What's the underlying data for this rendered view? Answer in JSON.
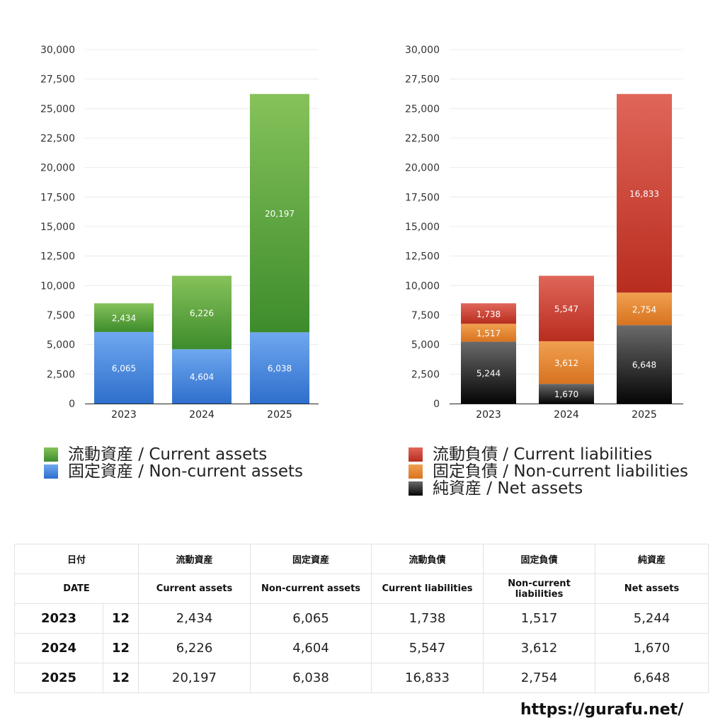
{
  "chart_data": [
    {
      "type": "bar",
      "stacked": true,
      "categories": [
        "2023",
        "2024",
        "2025"
      ],
      "ylim": [
        0,
        30000
      ],
      "yticks": [
        "0",
        "2,500",
        "5,000",
        "7,500",
        "10,000",
        "12,500",
        "15,000",
        "17,500",
        "20,000",
        "22,500",
        "25,000",
        "27,500",
        "30,000"
      ],
      "grid": true,
      "legend_position": "bottom",
      "series": [
        {
          "name": "固定資産 / Non-current assets",
          "values": [
            6065,
            4604,
            6038
          ],
          "labels": [
            "6,065",
            "4,604",
            "6,038"
          ],
          "color_top": "#6fa8f0",
          "color_bottom": "#2f6fcc"
        },
        {
          "name": "流動資産 / Current assets",
          "values": [
            2434,
            6226,
            20197
          ],
          "labels": [
            "2,434",
            "6,226",
            "20,197"
          ],
          "color_top": "#86c25a",
          "color_bottom": "#3d8c2c"
        }
      ]
    },
    {
      "type": "bar",
      "stacked": true,
      "categories": [
        "2023",
        "2024",
        "2025"
      ],
      "ylim": [
        0,
        30000
      ],
      "yticks": [
        "0",
        "2,500",
        "5,000",
        "7,500",
        "10,000",
        "12,500",
        "15,000",
        "17,500",
        "20,000",
        "22,500",
        "25,000",
        "27,500",
        "30,000"
      ],
      "grid": true,
      "legend_position": "bottom",
      "series": [
        {
          "name": "純資産 / Net assets",
          "values": [
            5244,
            1670,
            6648
          ],
          "labels": [
            "5,244",
            "1,670",
            "6,648"
          ],
          "color_top": "#6a6a6a",
          "color_bottom": "#050505"
        },
        {
          "name": "固定負債 / Non-current liabilities",
          "values": [
            1517,
            3612,
            2754
          ],
          "labels": [
            "1,517",
            "3,612",
            "2,754"
          ],
          "color_top": "#f0a050",
          "color_bottom": "#d8731f"
        },
        {
          "name": "流動負債 / Current liabilities",
          "values": [
            1738,
            5547,
            16833
          ],
          "labels": [
            "1,738",
            "5,547",
            "16,833"
          ],
          "color_top": "#e0665a",
          "color_bottom": "#b82d1e"
        }
      ]
    }
  ],
  "legends": {
    "left": [
      {
        "label": "流動資産 / Current assets",
        "color": "#4f9a35"
      },
      {
        "label": "固定資産 / Non-current assets",
        "color": "#3a7bd5"
      }
    ],
    "right": [
      {
        "label": "流動負債 / Current liabilities",
        "color": "#c83a2b"
      },
      {
        "label": "固定負債 / Non-current liabilities",
        "color": "#e58730"
      },
      {
        "label": "純資産 / Net assets",
        "color": "#1a1a1a"
      }
    ]
  },
  "table": {
    "headers_jp": [
      "日付",
      "流動資産",
      "固定資産",
      "流動負債",
      "固定負債",
      "純資産"
    ],
    "headers_en": [
      "DATE",
      "Current assets",
      "Non-current assets",
      "Current liabilities",
      "Non-current liabilities",
      "Net assets"
    ],
    "rows": [
      {
        "year": "2023",
        "month": "12",
        "values": [
          "2,434",
          "6,065",
          "1,738",
          "1,517",
          "5,244"
        ]
      },
      {
        "year": "2024",
        "month": "12",
        "values": [
          "6,226",
          "4,604",
          "5,547",
          "3,612",
          "1,670"
        ]
      },
      {
        "year": "2025",
        "month": "12",
        "values": [
          "20,197",
          "6,038",
          "16,833",
          "2,754",
          "6,648"
        ]
      }
    ]
  },
  "footer_url": "https://gurafu.net/"
}
